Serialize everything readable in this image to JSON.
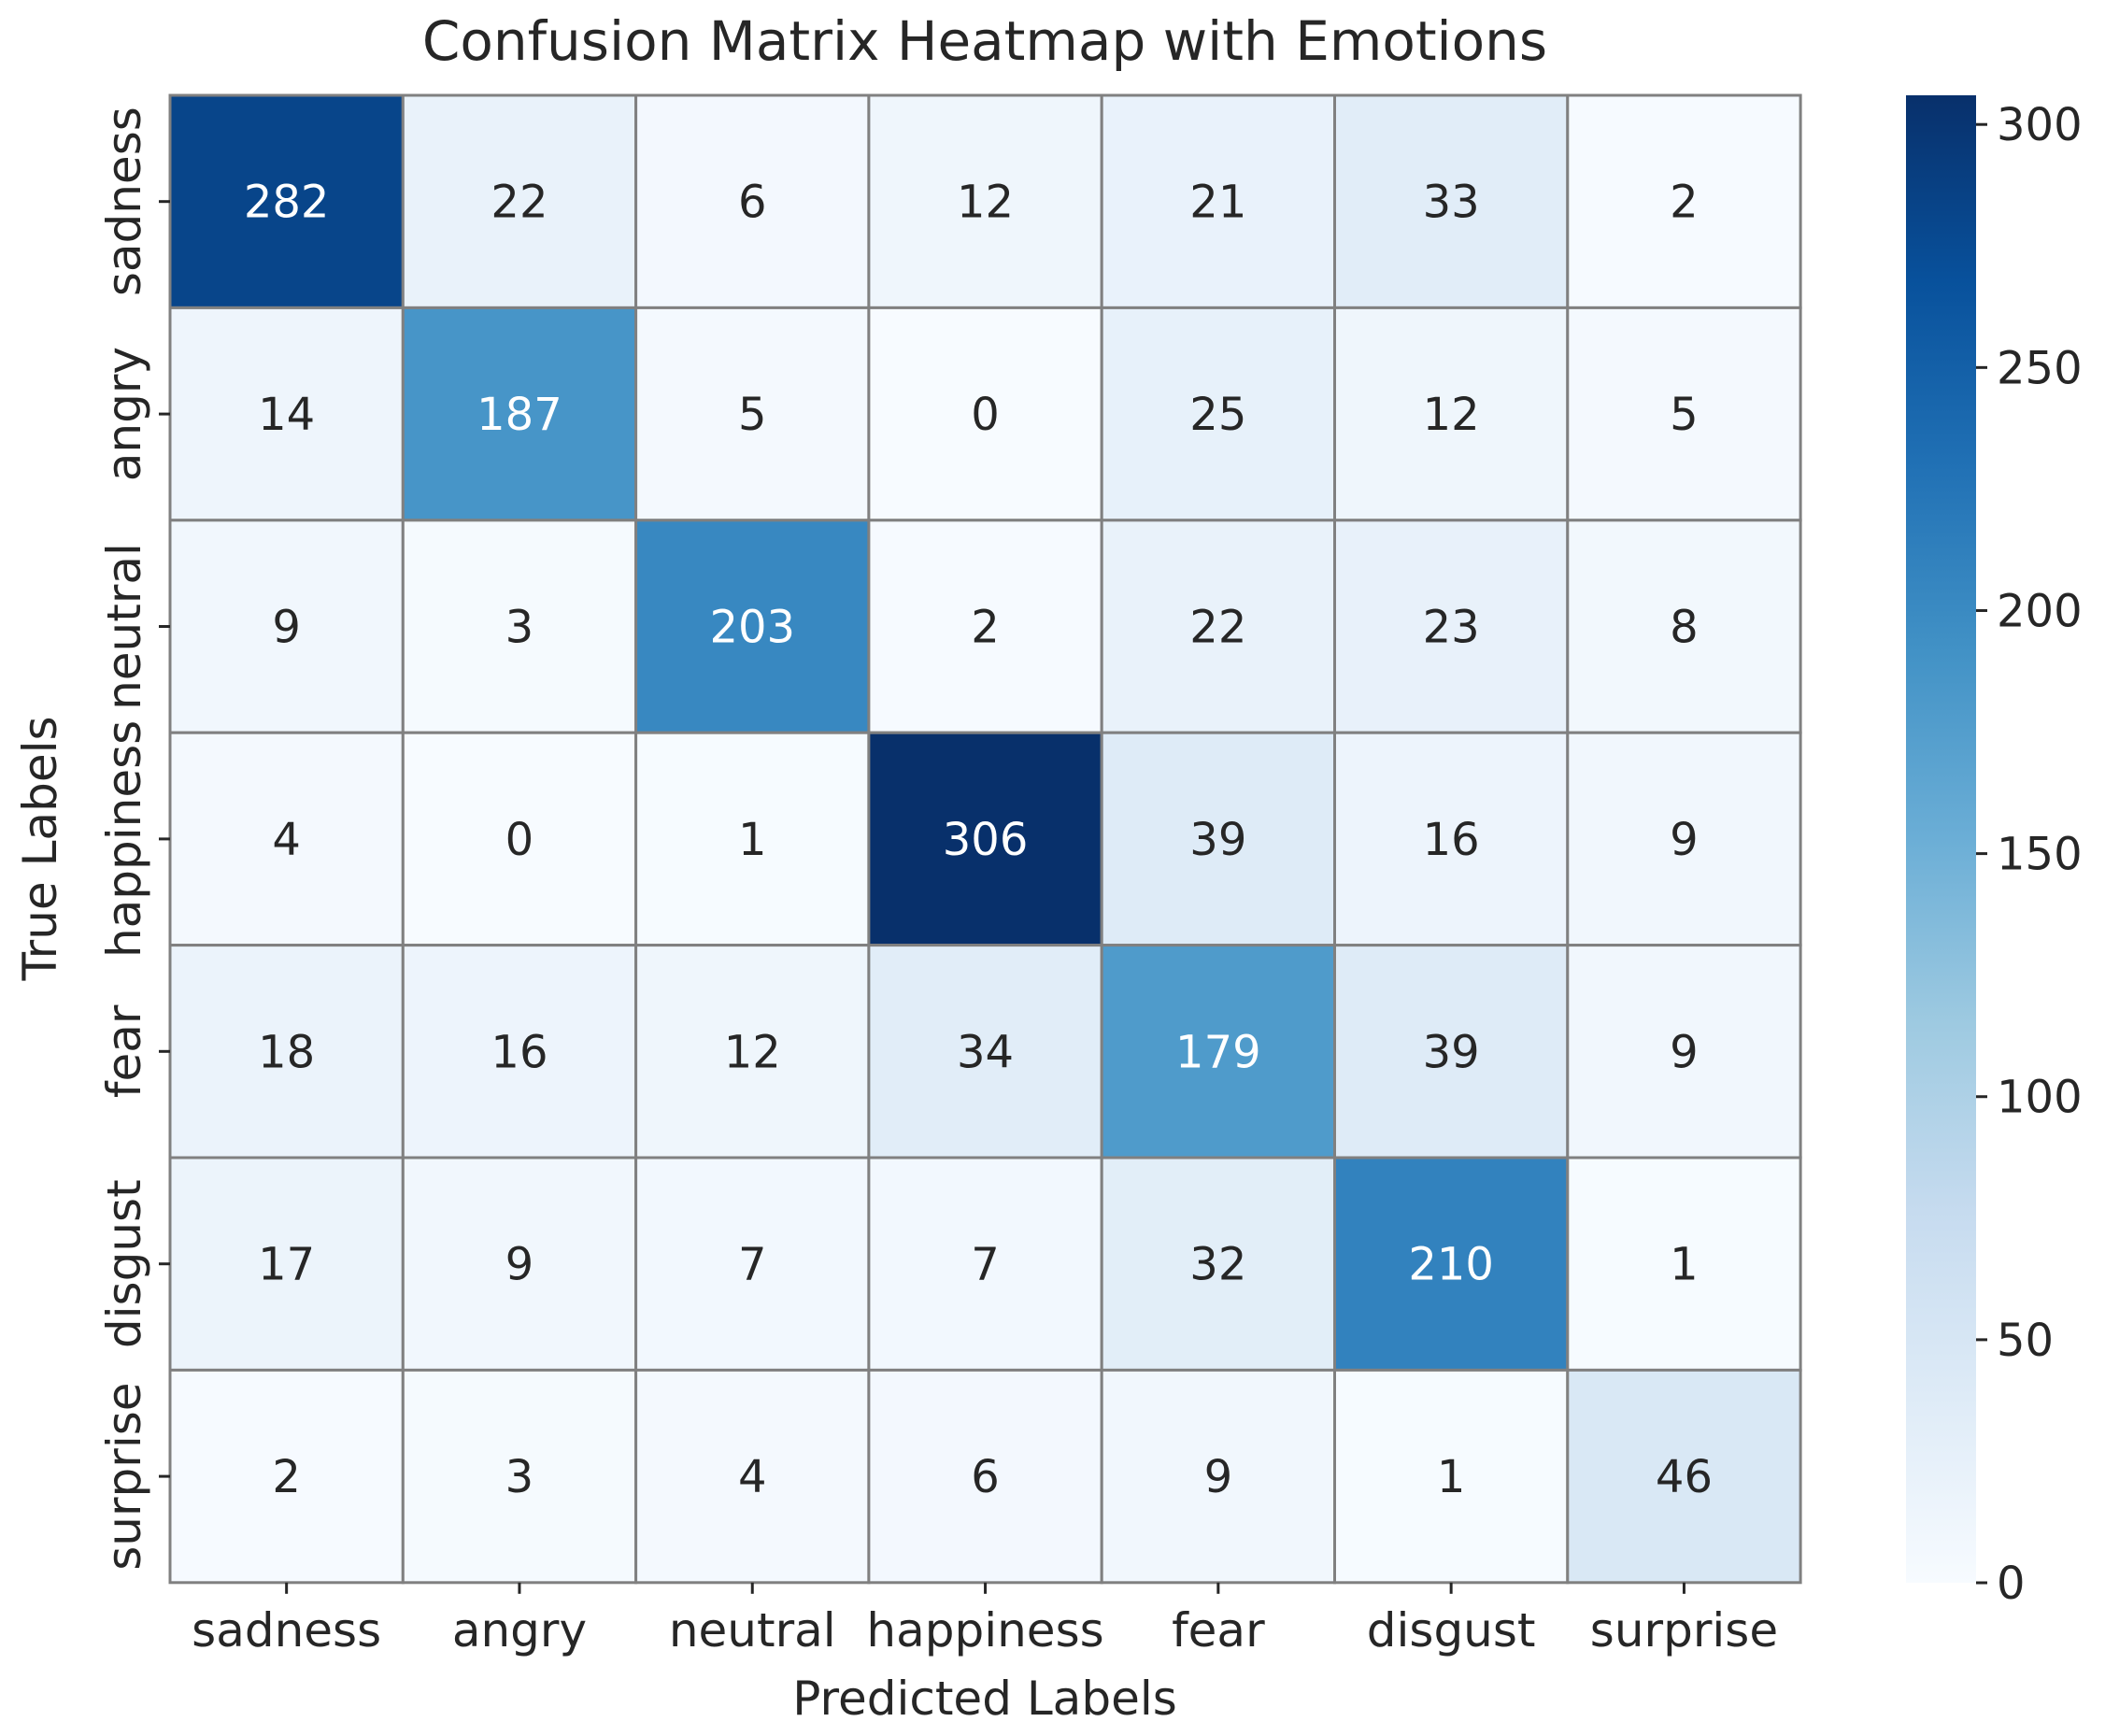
{
  "chart_data": {
    "type": "heatmap",
    "title": "Confusion Matrix Heatmap with Emotions",
    "xlabel": "Predicted Labels",
    "ylabel": "True Labels",
    "x_categories": [
      "sadness",
      "angry",
      "neutral",
      "happiness",
      "fear",
      "disgust",
      "surprise"
    ],
    "y_categories": [
      "sadness",
      "angry",
      "neutral",
      "happiness",
      "fear",
      "disgust",
      "surprise"
    ],
    "values": [
      [
        282,
        22,
        6,
        12,
        21,
        33,
        2
      ],
      [
        14,
        187,
        5,
        0,
        25,
        12,
        5
      ],
      [
        9,
        3,
        203,
        2,
        22,
        23,
        8
      ],
      [
        4,
        0,
        1,
        306,
        39,
        16,
        9
      ],
      [
        18,
        16,
        12,
        34,
        179,
        39,
        9
      ],
      [
        17,
        9,
        7,
        7,
        32,
        210,
        1
      ],
      [
        2,
        3,
        4,
        6,
        9,
        1,
        46
      ]
    ],
    "colormap": "Blues",
    "colorbar": {
      "range": [
        0,
        306
      ],
      "ticks": [
        0,
        50,
        100,
        150,
        200,
        250,
        300
      ]
    },
    "cell_border_color": "#808080",
    "annotation_colors": {
      "light": "#ffffff",
      "dark": "#262626"
    }
  }
}
